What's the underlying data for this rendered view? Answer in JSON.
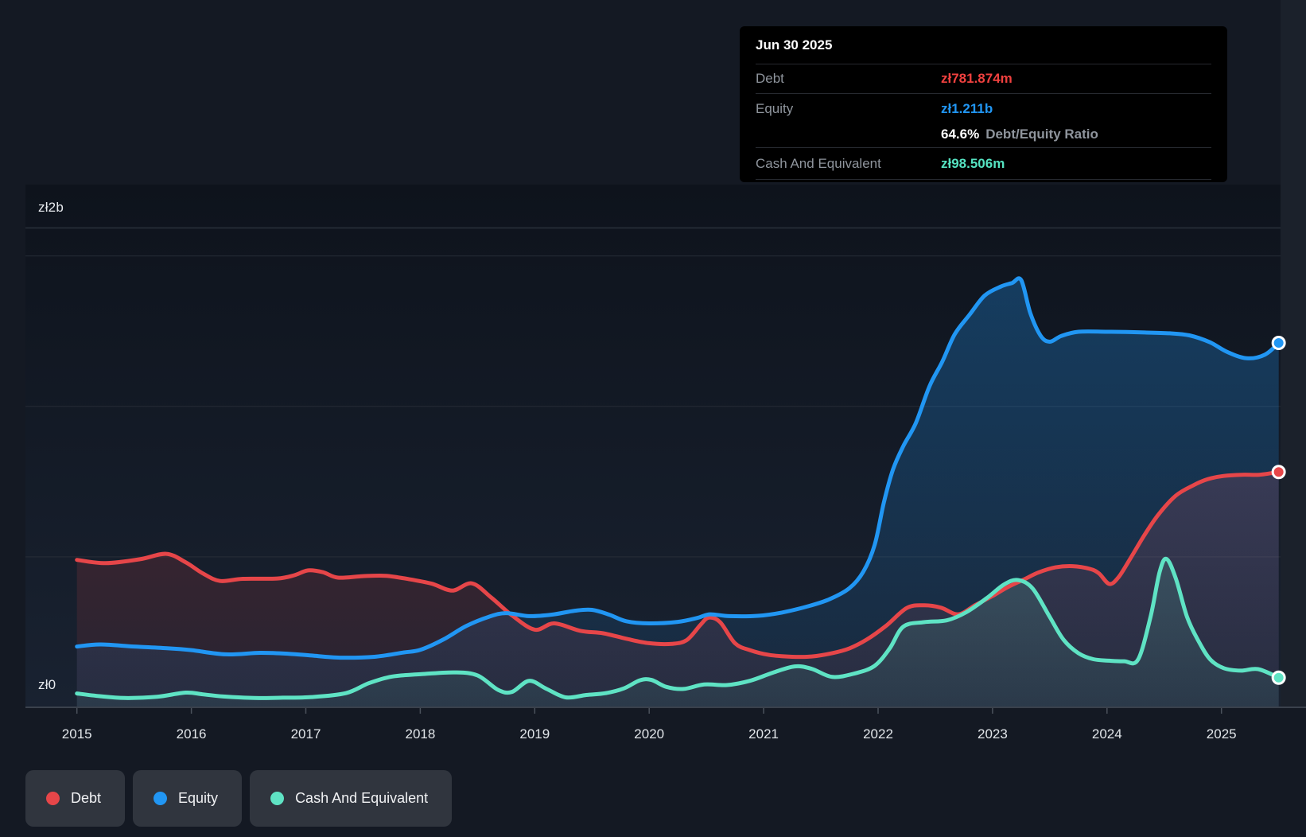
{
  "y_axis_top_label": "zł2b",
  "y_axis_bottom_label": "zł0",
  "tooltip": {
    "date": "Jun 30 2025",
    "rows": [
      {
        "label": "Debt",
        "value": "zł781.874m",
        "color": "#f0413f"
      },
      {
        "label": "Equity",
        "value": "zł1.211b",
        "color": "#2196f3"
      },
      {
        "label": "Cash And Equivalent",
        "value": "zł98.506m",
        "color": "#55e2c1"
      }
    ],
    "ratio_value": "64.6%",
    "ratio_label": "Debt/Equity Ratio"
  },
  "legend": {
    "items": [
      {
        "label": "Debt",
        "color": "#e64649"
      },
      {
        "label": "Equity",
        "color": "#2196f3"
      },
      {
        "label": "Cash And Equivalent",
        "color": "#5fe3c4"
      }
    ]
  },
  "chart_data": {
    "type": "area",
    "title": "Debt to Equity History",
    "currency": "zł",
    "unit": "billions PLN",
    "xlabel": "",
    "ylabel": "",
    "ylim": [
      0,
      2
    ],
    "xlim": [
      2015,
      2025.5
    ],
    "grid": true,
    "legend_position": "bottom-left",
    "y_gridline_values": [
      0.5,
      1.0,
      1.5
    ],
    "x_tick_labels": [
      "2015",
      "2016",
      "2017",
      "2018",
      "2019",
      "2020",
      "2021",
      "2022",
      "2023",
      "2024",
      "2025"
    ],
    "x_tick_years": [
      2015,
      2016,
      2017,
      2018,
      2019,
      2020,
      2021,
      2022,
      2023,
      2024,
      2025
    ],
    "last_values": {
      "Debt": 0.781874,
      "Equity": 1.211,
      "Cash And Equivalent": 0.098506
    },
    "series": [
      {
        "name": "Debt",
        "color": "#e64649",
        "points": [
          [
            2015.0,
            0.49
          ],
          [
            2015.25,
            0.479
          ],
          [
            2015.55,
            0.492
          ],
          [
            2015.78,
            0.51
          ],
          [
            2015.95,
            0.482
          ],
          [
            2016.1,
            0.445
          ],
          [
            2016.25,
            0.42
          ],
          [
            2016.45,
            0.427
          ],
          [
            2016.75,
            0.428
          ],
          [
            2016.9,
            0.439
          ],
          [
            2017.02,
            0.455
          ],
          [
            2017.15,
            0.449
          ],
          [
            2017.28,
            0.431
          ],
          [
            2017.5,
            0.436
          ],
          [
            2017.7,
            0.437
          ],
          [
            2017.9,
            0.426
          ],
          [
            2018.1,
            0.411
          ],
          [
            2018.28,
            0.388
          ],
          [
            2018.45,
            0.412
          ],
          [
            2018.62,
            0.365
          ],
          [
            2018.8,
            0.306
          ],
          [
            2019.0,
            0.258
          ],
          [
            2019.17,
            0.279
          ],
          [
            2019.4,
            0.254
          ],
          [
            2019.6,
            0.246
          ],
          [
            2019.8,
            0.228
          ],
          [
            2020.0,
            0.213
          ],
          [
            2020.2,
            0.211
          ],
          [
            2020.33,
            0.224
          ],
          [
            2020.45,
            0.275
          ],
          [
            2020.52,
            0.298
          ],
          [
            2020.62,
            0.283
          ],
          [
            2020.75,
            0.213
          ],
          [
            2020.88,
            0.19
          ],
          [
            2021.05,
            0.174
          ],
          [
            2021.25,
            0.168
          ],
          [
            2021.42,
            0.169
          ],
          [
            2021.6,
            0.18
          ],
          [
            2021.75,
            0.196
          ],
          [
            2021.9,
            0.225
          ],
          [
            2022.07,
            0.271
          ],
          [
            2022.25,
            0.33
          ],
          [
            2022.4,
            0.339
          ],
          [
            2022.55,
            0.331
          ],
          [
            2022.7,
            0.309
          ],
          [
            2022.85,
            0.34
          ],
          [
            2023.0,
            0.37
          ],
          [
            2023.13,
            0.399
          ],
          [
            2023.27,
            0.424
          ],
          [
            2023.4,
            0.448
          ],
          [
            2023.55,
            0.465
          ],
          [
            2023.7,
            0.469
          ],
          [
            2023.85,
            0.46
          ],
          [
            2023.93,
            0.445
          ],
          [
            2024.02,
            0.41
          ],
          [
            2024.1,
            0.432
          ],
          [
            2024.2,
            0.492
          ],
          [
            2024.32,
            0.568
          ],
          [
            2024.45,
            0.641
          ],
          [
            2024.6,
            0.703
          ],
          [
            2024.75,
            0.737
          ],
          [
            2024.88,
            0.758
          ],
          [
            2025.02,
            0.769
          ],
          [
            2025.18,
            0.773
          ],
          [
            2025.33,
            0.773
          ],
          [
            2025.5,
            0.782
          ]
        ]
      },
      {
        "name": "Equity",
        "color": "#2196f3",
        "points": [
          [
            2015.0,
            0.202
          ],
          [
            2015.2,
            0.209
          ],
          [
            2015.5,
            0.202
          ],
          [
            2015.8,
            0.196
          ],
          [
            2016.0,
            0.19
          ],
          [
            2016.3,
            0.176
          ],
          [
            2016.6,
            0.181
          ],
          [
            2016.85,
            0.178
          ],
          [
            2017.05,
            0.172
          ],
          [
            2017.3,
            0.165
          ],
          [
            2017.6,
            0.168
          ],
          [
            2017.85,
            0.182
          ],
          [
            2018.0,
            0.191
          ],
          [
            2018.2,
            0.225
          ],
          [
            2018.4,
            0.27
          ],
          [
            2018.6,
            0.301
          ],
          [
            2018.75,
            0.313
          ],
          [
            2018.95,
            0.303
          ],
          [
            2019.15,
            0.308
          ],
          [
            2019.35,
            0.321
          ],
          [
            2019.5,
            0.324
          ],
          [
            2019.65,
            0.308
          ],
          [
            2019.8,
            0.286
          ],
          [
            2020.0,
            0.279
          ],
          [
            2020.25,
            0.284
          ],
          [
            2020.42,
            0.297
          ],
          [
            2020.53,
            0.309
          ],
          [
            2020.7,
            0.303
          ],
          [
            2020.95,
            0.304
          ],
          [
            2021.16,
            0.315
          ],
          [
            2021.4,
            0.337
          ],
          [
            2021.58,
            0.36
          ],
          [
            2021.75,
            0.396
          ],
          [
            2021.87,
            0.45
          ],
          [
            2021.97,
            0.54
          ],
          [
            2022.05,
            0.68
          ],
          [
            2022.13,
            0.79
          ],
          [
            2022.22,
            0.868
          ],
          [
            2022.33,
            0.945
          ],
          [
            2022.45,
            1.068
          ],
          [
            2022.56,
            1.148
          ],
          [
            2022.67,
            1.24
          ],
          [
            2022.8,
            1.305
          ],
          [
            2022.93,
            1.368
          ],
          [
            2023.07,
            1.398
          ],
          [
            2023.17,
            1.41
          ],
          [
            2023.25,
            1.42
          ],
          [
            2023.33,
            1.31
          ],
          [
            2023.42,
            1.235
          ],
          [
            2023.5,
            1.215
          ],
          [
            2023.6,
            1.234
          ],
          [
            2023.75,
            1.248
          ],
          [
            2024.0,
            1.248
          ],
          [
            2024.3,
            1.246
          ],
          [
            2024.55,
            1.243
          ],
          [
            2024.72,
            1.236
          ],
          [
            2024.9,
            1.213
          ],
          [
            2025.05,
            1.181
          ],
          [
            2025.22,
            1.16
          ],
          [
            2025.38,
            1.172
          ],
          [
            2025.5,
            1.211
          ]
        ]
      },
      {
        "name": "Cash And Equivalent",
        "color": "#5fe3c4",
        "points": [
          [
            2015.0,
            0.046
          ],
          [
            2015.2,
            0.037
          ],
          [
            2015.42,
            0.031
          ],
          [
            2015.7,
            0.035
          ],
          [
            2015.95,
            0.049
          ],
          [
            2016.1,
            0.043
          ],
          [
            2016.28,
            0.036
          ],
          [
            2016.55,
            0.031
          ],
          [
            2016.8,
            0.032
          ],
          [
            2017.05,
            0.034
          ],
          [
            2017.35,
            0.047
          ],
          [
            2017.55,
            0.08
          ],
          [
            2017.75,
            0.102
          ],
          [
            2018.0,
            0.11
          ],
          [
            2018.3,
            0.116
          ],
          [
            2018.5,
            0.106
          ],
          [
            2018.68,
            0.058
          ],
          [
            2018.8,
            0.051
          ],
          [
            2018.95,
            0.088
          ],
          [
            2019.1,
            0.062
          ],
          [
            2019.27,
            0.033
          ],
          [
            2019.45,
            0.041
          ],
          [
            2019.62,
            0.047
          ],
          [
            2019.78,
            0.063
          ],
          [
            2019.92,
            0.09
          ],
          [
            2020.02,
            0.091
          ],
          [
            2020.15,
            0.068
          ],
          [
            2020.3,
            0.061
          ],
          [
            2020.48,
            0.076
          ],
          [
            2020.68,
            0.074
          ],
          [
            2020.88,
            0.088
          ],
          [
            2021.08,
            0.115
          ],
          [
            2021.27,
            0.136
          ],
          [
            2021.42,
            0.128
          ],
          [
            2021.6,
            0.101
          ],
          [
            2021.8,
            0.113
          ],
          [
            2021.97,
            0.138
          ],
          [
            2022.1,
            0.195
          ],
          [
            2022.22,
            0.268
          ],
          [
            2022.4,
            0.283
          ],
          [
            2022.6,
            0.289
          ],
          [
            2022.77,
            0.316
          ],
          [
            2022.95,
            0.363
          ],
          [
            2023.1,
            0.408
          ],
          [
            2023.22,
            0.423
          ],
          [
            2023.35,
            0.395
          ],
          [
            2023.5,
            0.3
          ],
          [
            2023.62,
            0.225
          ],
          [
            2023.75,
            0.18
          ],
          [
            2023.88,
            0.16
          ],
          [
            2024.02,
            0.155
          ],
          [
            2024.15,
            0.153
          ],
          [
            2024.27,
            0.158
          ],
          [
            2024.38,
            0.3
          ],
          [
            2024.46,
            0.45
          ],
          [
            2024.52,
            0.493
          ],
          [
            2024.6,
            0.43
          ],
          [
            2024.7,
            0.3
          ],
          [
            2024.8,
            0.22
          ],
          [
            2024.9,
            0.16
          ],
          [
            2025.02,
            0.13
          ],
          [
            2025.17,
            0.122
          ],
          [
            2025.32,
            0.127
          ],
          [
            2025.5,
            0.0985
          ]
        ]
      }
    ]
  }
}
